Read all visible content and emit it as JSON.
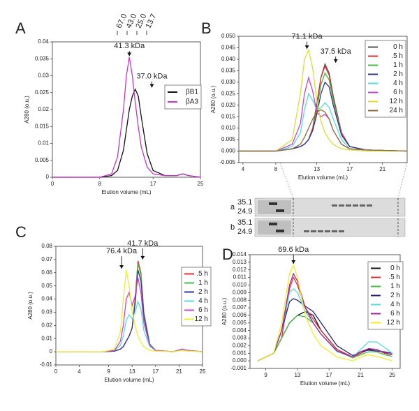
{
  "chart_data": [
    {
      "type": "line",
      "panel": "A",
      "x_label": "Elution volume (mL)",
      "y_label": "A280 (o.u.)",
      "xlim": [
        0,
        25
      ],
      "xticks": [
        0,
        8,
        17,
        25
      ],
      "ylim": [
        0,
        0.04
      ],
      "yticks": [
        0,
        0.005,
        0.01,
        0.015,
        0.02,
        0.025,
        0.03,
        0.035,
        0.04
      ],
      "size_markers": [
        "67.0",
        "43.0",
        "25.0",
        "13.7"
      ],
      "annotations": [
        "41.3 kDa",
        "37.0 kDa"
      ],
      "x": [
        0,
        5,
        8,
        10,
        11,
        12,
        12.5,
        13,
        13.5,
        14,
        14.5,
        15,
        16,
        17,
        19,
        21,
        22,
        23,
        25
      ],
      "series": [
        {
          "name": "βB1",
          "color": "#111111",
          "values": [
            0,
            0,
            0,
            0.0005,
            0.002,
            0.008,
            0.014,
            0.02,
            0.024,
            0.026,
            0.024,
            0.018,
            0.007,
            0.002,
            0.0005,
            0.0005,
            0.001,
            0.0005,
            0
          ]
        },
        {
          "name": "βA3",
          "color": "#cc33cc",
          "values": [
            0,
            0,
            0,
            0.001,
            0.006,
            0.02,
            0.03,
            0.0355,
            0.03,
            0.022,
            0.015,
            0.009,
            0.003,
            0.001,
            0.0005,
            0.0005,
            0.001,
            0.0005,
            0
          ]
        }
      ]
    },
    {
      "type": "line",
      "panel": "B",
      "x_label": "Elution volume (mL)",
      "y_label": "A280 (o.u.)",
      "xlim": [
        3.5,
        24
      ],
      "xticks": [
        4,
        8,
        13,
        17,
        21
      ],
      "ylim": [
        -0.005,
        0.05
      ],
      "yticks": [
        {
          "value": -0.005,
          "label": "-0.005"
        },
        {
          "value": 0,
          "label": "0.000"
        },
        {
          "value": 0.005,
          "label": "0.005"
        },
        {
          "value": 0.01,
          "label": "0.010"
        },
        {
          "value": 0.015,
          "label": "0.015"
        },
        {
          "value": 0.02,
          "label": "0.020"
        },
        {
          "value": 0.025,
          "label": "0.025"
        },
        {
          "value": 0.03,
          "label": "0.030"
        },
        {
          "value": 0.035,
          "label": "0.035"
        },
        {
          "value": 0.04,
          "label": "0.040"
        },
        {
          "value": 0.045,
          "label": "0.045"
        },
        {
          "value": 0.05,
          "label": "0.050"
        }
      ],
      "annotations": [
        "71.1 kDa",
        "37.5 kDa"
      ],
      "gel": [
        {
          "label": "a",
          "markers": [
            "35.1",
            "24.9"
          ]
        },
        {
          "label": "b",
          "markers": [
            "35.1",
            "24.9"
          ]
        }
      ],
      "x": [
        3.5,
        8,
        10,
        11,
        11.5,
        12,
        12.5,
        13,
        13.5,
        14,
        14.5,
        15,
        16,
        17,
        19,
        24
      ],
      "series": [
        {
          "name": "0 h",
          "color": "#555555",
          "values": [
            0,
            0,
            0.001,
            0.002,
            0.003,
            0.005,
            0.01,
            0.02,
            0.032,
            0.038,
            0.034,
            0.024,
            0.008,
            0.002,
            0.0005,
            0
          ]
        },
        {
          "name": ".5 h",
          "color": "#e03030",
          "values": [
            0,
            0,
            0.001,
            0.002,
            0.003,
            0.005,
            0.01,
            0.021,
            0.032,
            0.037,
            0.033,
            0.023,
            0.008,
            0.002,
            0.0005,
            0
          ]
        },
        {
          "name": "1 h",
          "color": "#44bb44",
          "values": [
            0,
            0,
            0.001,
            0.002,
            0.003,
            0.005,
            0.009,
            0.018,
            0.029,
            0.034,
            0.031,
            0.022,
            0.007,
            0.002,
            0.0005,
            0
          ]
        },
        {
          "name": "2 h",
          "color": "#333399",
          "values": [
            0,
            0,
            0.001,
            0.002,
            0.003,
            0.005,
            0.009,
            0.016,
            0.025,
            0.03,
            0.028,
            0.02,
            0.007,
            0.002,
            0.0005,
            0
          ]
        },
        {
          "name": "4 h",
          "color": "#55dddd",
          "values": [
            0,
            0,
            0.002,
            0.008,
            0.018,
            0.025,
            0.022,
            0.018,
            0.019,
            0.021,
            0.019,
            0.014,
            0.005,
            0.001,
            0.0005,
            0
          ]
        },
        {
          "name": "6 h",
          "color": "#cc44cc",
          "values": [
            0,
            0,
            0.003,
            0.012,
            0.025,
            0.032,
            0.026,
            0.017,
            0.015,
            0.016,
            0.014,
            0.009,
            0.003,
            0.001,
            0.0005,
            0
          ]
        },
        {
          "name": "12 h",
          "color": "#dddd33",
          "values": [
            0,
            0,
            0.005,
            0.025,
            0.04,
            0.044,
            0.036,
            0.022,
            0.013,
            0.008,
            0.005,
            0.003,
            0.001,
            0.0005,
            0,
            0
          ]
        },
        {
          "name": "24 h",
          "color": "#8a6d3b",
          "values": [
            0,
            0,
            0.001,
            0.003,
            0.006,
            0.01,
            0.014,
            0.017,
            0.018,
            0.017,
            0.014,
            0.009,
            0.003,
            0.001,
            0.0005,
            0
          ]
        }
      ]
    },
    {
      "type": "line",
      "panel": "C",
      "x_label": "Elution volume (mL)",
      "y_label": "A280 (o.u.)",
      "xlim": [
        0,
        25
      ],
      "xticks": [
        0,
        4,
        9,
        13,
        17,
        21,
        25
      ],
      "ylim": [
        -0.01,
        0.08
      ],
      "yticks": [
        -0.01,
        0,
        0.01,
        0.02,
        0.03,
        0.04,
        0.05,
        0.06,
        0.07,
        0.08
      ],
      "annotations": [
        "76.4 kDa",
        "41.7 kDa"
      ],
      "x": [
        0,
        8,
        10,
        11,
        11.5,
        12,
        12.5,
        13,
        13.5,
        14,
        14.5,
        15,
        16,
        17,
        20,
        21.5,
        22.5,
        25
      ],
      "series": [
        {
          "name": ".5 h",
          "color": "#e03030",
          "values": [
            0,
            0,
            0.0005,
            0.002,
            0.004,
            0.008,
            0.012,
            0.018,
            0.04,
            0.069,
            0.06,
            0.03,
            0.006,
            0.001,
            0,
            0.002,
            0.001,
            0
          ]
        },
        {
          "name": "1 h",
          "color": "#44bb44",
          "values": [
            0,
            0,
            0.0005,
            0.002,
            0.004,
            0.008,
            0.012,
            0.018,
            0.038,
            0.067,
            0.058,
            0.029,
            0.006,
            0.001,
            0,
            0.002,
            0.001,
            0
          ]
        },
        {
          "name": "2 h",
          "color": "#333399",
          "values": [
            0,
            0,
            0.0005,
            0.002,
            0.004,
            0.008,
            0.012,
            0.018,
            0.036,
            0.062,
            0.054,
            0.027,
            0.005,
            0.001,
            0,
            0.002,
            0.001,
            0
          ]
        },
        {
          "name": "4 h",
          "color": "#55dddd",
          "values": [
            0,
            0,
            0.001,
            0.005,
            0.012,
            0.024,
            0.028,
            0.025,
            0.03,
            0.038,
            0.032,
            0.016,
            0.004,
            0.001,
            0,
            0.002,
            0.001,
            0
          ]
        },
        {
          "name": "6 h",
          "color": "#cc44cc",
          "values": [
            0,
            0,
            0.001,
            0.008,
            0.02,
            0.04,
            0.045,
            0.035,
            0.042,
            0.056,
            0.045,
            0.022,
            0.005,
            0.001,
            0,
            0.002,
            0.001,
            0
          ]
        },
        {
          "name": "12 h",
          "color": "#eeee33",
          "values": [
            0,
            0,
            0.002,
            0.015,
            0.04,
            0.062,
            0.05,
            0.03,
            0.02,
            0.012,
            0.007,
            0.004,
            0.001,
            0.0005,
            0,
            0.001,
            0.0005,
            0
          ]
        }
      ]
    },
    {
      "type": "line",
      "panel": "D",
      "x_label": "Elution volume (mL)",
      "y_label": "A280 (o.u.)",
      "xlim": [
        7,
        26
      ],
      "xticks": [
        9,
        13,
        17,
        21,
        25
      ],
      "ylim": [
        -0.001,
        0.014
      ],
      "yticks": [
        {
          "value": -0.001,
          "label": "-0.001"
        },
        {
          "value": 0,
          "label": "0.000"
        },
        {
          "value": 0.001,
          "label": "0.001"
        },
        {
          "value": 0.002,
          "label": "0.002"
        },
        {
          "value": 0.003,
          "label": "0.003"
        },
        {
          "value": 0.004,
          "label": "0.004"
        },
        {
          "value": 0.005,
          "label": "0.005"
        },
        {
          "value": 0.006,
          "label": "0.006"
        },
        {
          "value": 0.007,
          "label": "0.007"
        },
        {
          "value": 0.008,
          "label": "0.008"
        },
        {
          "value": 0.009,
          "label": "0.009"
        },
        {
          "value": 0.01,
          "label": "0.010"
        },
        {
          "value": 0.011,
          "label": "0.011"
        },
        {
          "value": 0.012,
          "label": "0.012"
        },
        {
          "value": 0.013,
          "label": "0.013"
        },
        {
          "value": 0.014,
          "label": "0.014"
        }
      ],
      "annotations": [
        "69.6 kDa"
      ],
      "x": [
        8,
        10,
        11,
        12,
        12.5,
        13,
        14,
        15,
        16,
        18,
        20,
        21,
        22,
        23,
        24,
        25
      ],
      "series": [
        {
          "name": "0 h",
          "color": "#111111",
          "values": [
            0,
            0.001,
            0.003,
            0.005,
            0.0055,
            0.006,
            0.0065,
            0.006,
            0.004,
            0.0015,
            0.0005,
            0.001,
            0.0015,
            0.0015,
            0.001,
            0.0008
          ]
        },
        {
          "name": ".5 h",
          "color": "#e03030",
          "values": [
            0,
            0.001,
            0.003,
            0.0095,
            0.011,
            0.01,
            0.007,
            0.0055,
            0.004,
            0.0015,
            0.0005,
            0.001,
            0.0016,
            0.0015,
            0.001,
            0.0008
          ]
        },
        {
          "name": "1 h",
          "color": "#44bb44",
          "values": [
            0,
            0.001,
            0.003,
            0.005,
            0.0055,
            0.006,
            0.0058,
            0.005,
            0.0035,
            0.0013,
            0.0004,
            0.0008,
            0.0012,
            0.0012,
            0.0008,
            0.0006
          ]
        },
        {
          "name": "2 h",
          "color": "#222277",
          "values": [
            0,
            0.001,
            0.004,
            0.0078,
            0.0082,
            0.008,
            0.0072,
            0.0065,
            0.005,
            0.002,
            0.0007,
            0.0012,
            0.0014,
            0.0013,
            0.0012,
            0.001
          ]
        },
        {
          "name": "4 h",
          "color": "#55dddd",
          "values": [
            0,
            0.001,
            0.004,
            0.009,
            0.0095,
            0.009,
            0.0065,
            0.005,
            0.0035,
            0.0012,
            0.0005,
            0.0015,
            0.0025,
            0.0025,
            0.0018,
            0.001
          ]
        },
        {
          "name": "6 h",
          "color": "#aa2299",
          "values": [
            0,
            0.001,
            0.004,
            0.01,
            0.0115,
            0.0105,
            0.007,
            0.005,
            0.0035,
            0.0013,
            0.0005,
            0.0012,
            0.0016,
            0.0015,
            0.0011,
            0.0008
          ]
        },
        {
          "name": "12 h",
          "color": "#eeee22",
          "values": [
            0,
            0.001,
            0.005,
            0.0115,
            0.0126,
            0.011,
            0.006,
            0.0035,
            0.002,
            0.0005,
            0,
            0.0005,
            0.0008,
            0.0006,
            0.0003,
            0
          ]
        }
      ]
    }
  ]
}
